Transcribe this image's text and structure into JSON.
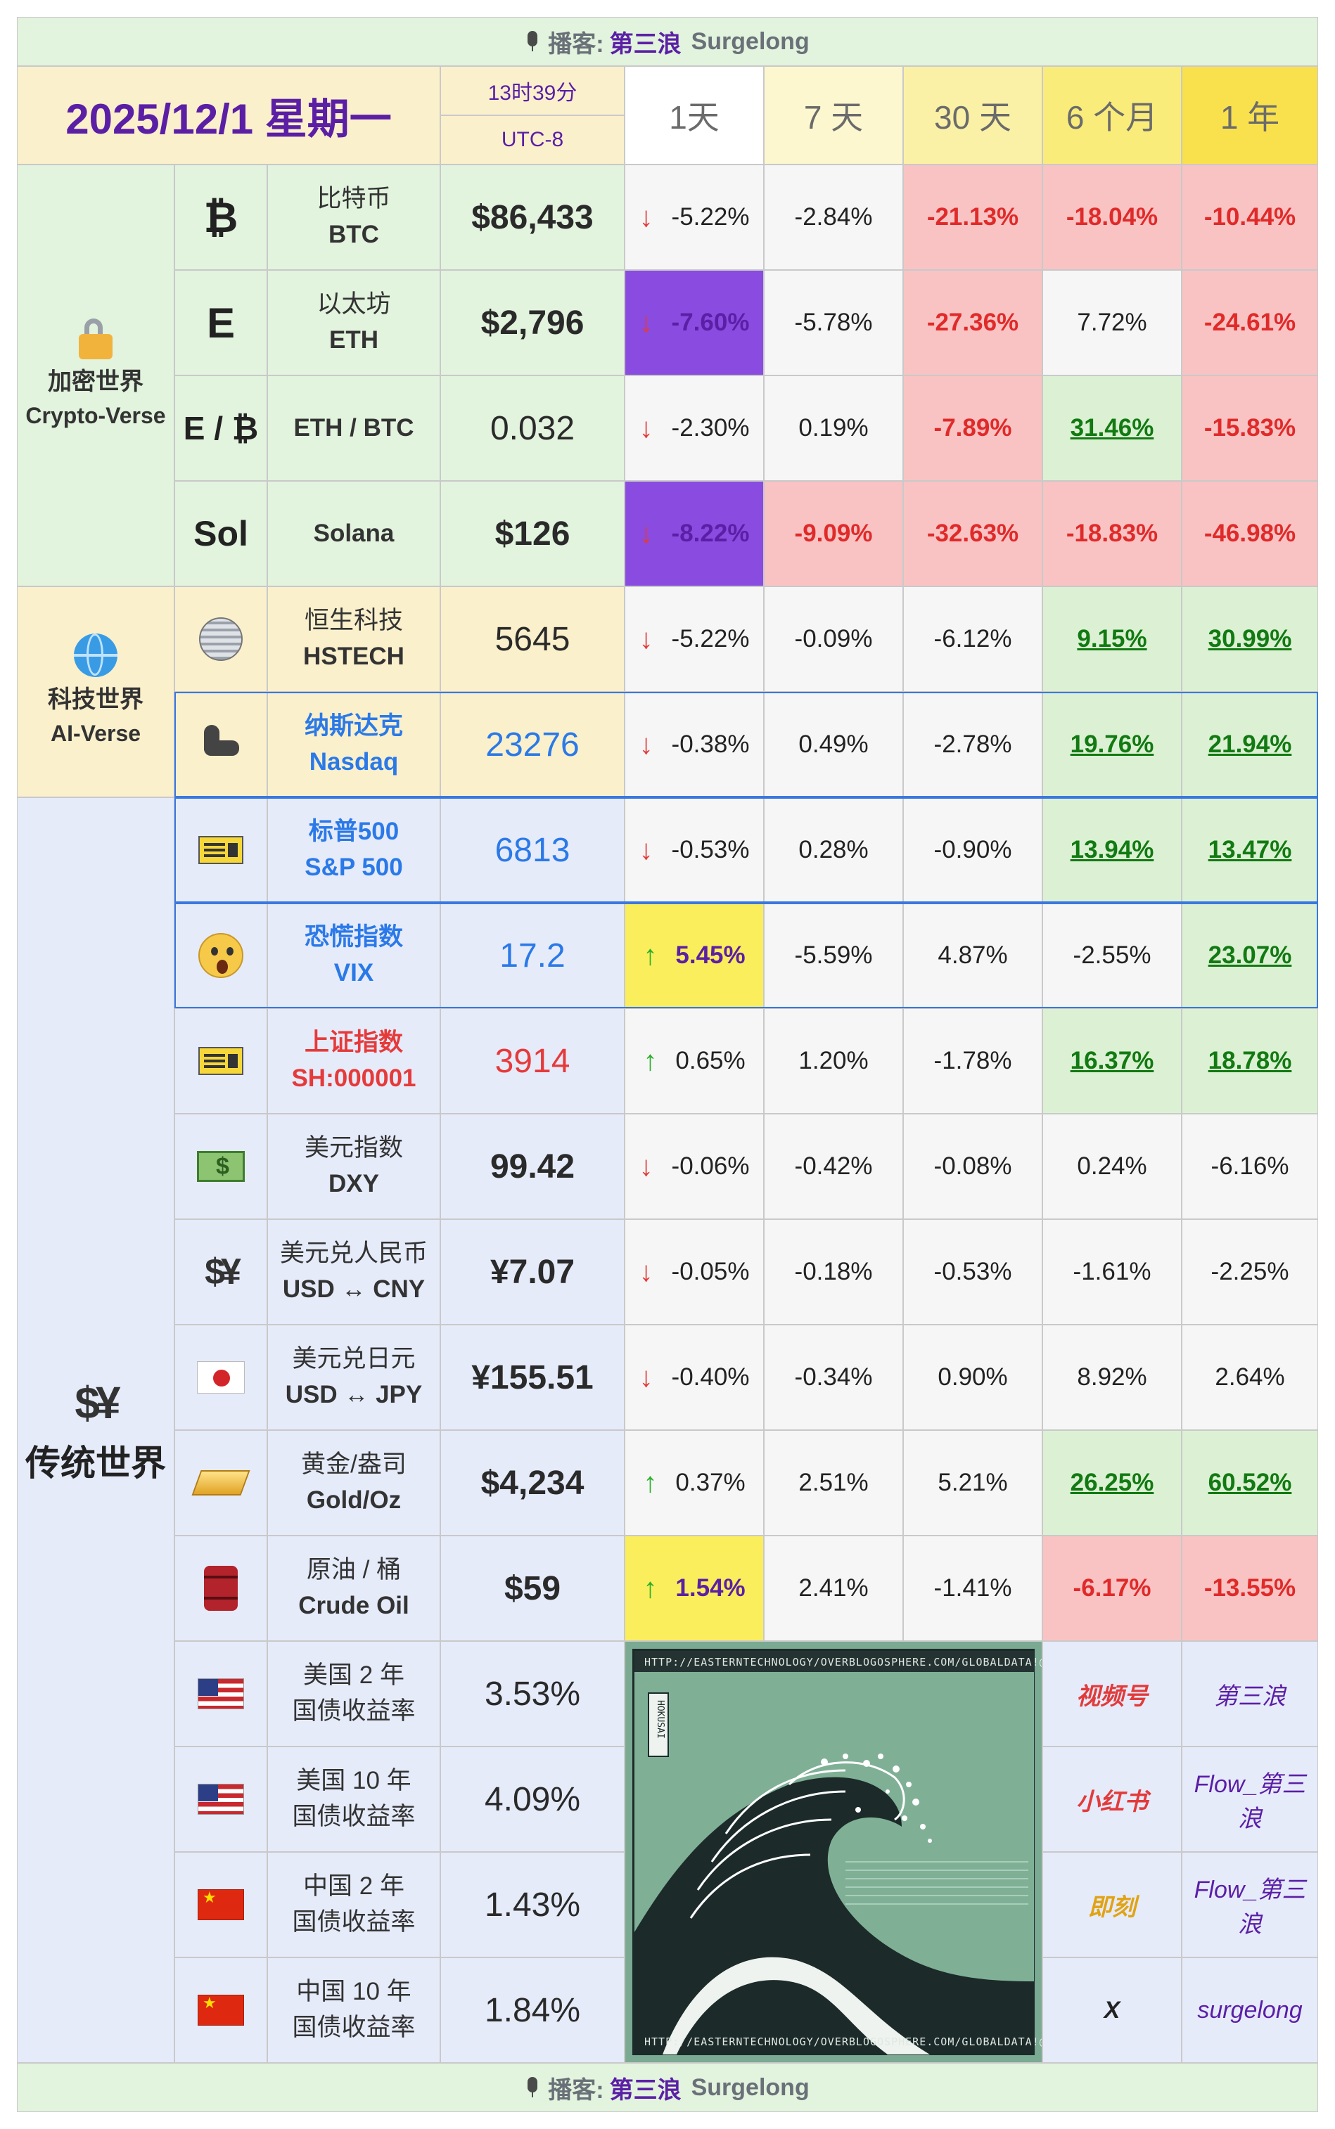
{
  "banner": {
    "podcast_label": "播客:",
    "name": "第三浪",
    "brand": "Surgelong"
  },
  "header": {
    "date": "2025/12/1 星期一",
    "time": "13时39分",
    "timezone": "UTC-8",
    "periods": [
      "1天",
      "7 天",
      "30 天",
      "6 个月",
      "1 年"
    ]
  },
  "sections": {
    "crypto": {
      "line1": "加密世界",
      "line2": "Crypto-Verse"
    },
    "tech": {
      "line1": "科技世界",
      "line2": "AI-Verse"
    },
    "traditional": {
      "line1": "传统世界"
    }
  },
  "rows": [
    {
      "icon": "₿",
      "name": "比特币",
      "code": "BTC",
      "price": "$86,433",
      "d1": "-5.22%",
      "d7": "-2.84%",
      "d30": "-21.13%",
      "m6": "-18.04%",
      "y1": "-10.44%"
    },
    {
      "icon": "E",
      "name": "以太坊",
      "code": "ETH",
      "price": "$2,796",
      "d1": "-7.60%",
      "d7": "-5.78%",
      "d30": "-27.36%",
      "m6": "7.72%",
      "y1": "-24.61%"
    },
    {
      "icon": "E / ₿",
      "name": "ETH / BTC",
      "code": "",
      "price": "0.032",
      "d1": "-2.30%",
      "d7": "0.19%",
      "d30": "-7.89%",
      "m6": "31.46%",
      "y1": "-15.83%"
    },
    {
      "icon": "Sol",
      "name": "Solana",
      "code": "",
      "price": "$126",
      "d1": "-8.22%",
      "d7": "-9.09%",
      "d30": "-32.63%",
      "m6": "-18.83%",
      "y1": "-46.98%"
    },
    {
      "icon": "disco-ball",
      "name": "恒生科技",
      "code": "HSTECH",
      "price": "5645",
      "d1": "-5.22%",
      "d7": "-0.09%",
      "d30": "-6.12%",
      "m6": "9.15%",
      "y1": "30.99%"
    },
    {
      "icon": "flexed-arm",
      "name": "纳斯达克",
      "code": "Nasdaq",
      "price": "23276",
      "d1": "-0.38%",
      "d7": "0.49%",
      "d30": "-2.78%",
      "m6": "19.76%",
      "y1": "21.94%"
    },
    {
      "icon": "ticket",
      "name": "标普500",
      "code": "S&P 500",
      "price": "6813",
      "d1": "-0.53%",
      "d7": "0.28%",
      "d30": "-0.90%",
      "m6": "13.94%",
      "y1": "13.47%"
    },
    {
      "icon": "scream-face",
      "name": "恐慌指数",
      "code": "VIX",
      "price": "17.2",
      "d1": "5.45%",
      "d7": "-5.59%",
      "d30": "4.87%",
      "m6": "-2.55%",
      "y1": "23.07%"
    },
    {
      "icon": "ticket",
      "name": "上证指数",
      "code": "SH:000001",
      "price": "3914",
      "d1": "0.65%",
      "d7": "1.20%",
      "d30": "-1.78%",
      "m6": "16.37%",
      "y1": "18.78%"
    },
    {
      "icon": "banknote",
      "name": "美元指数",
      "code": "DXY",
      "price": "99.42",
      "d1": "-0.06%",
      "d7": "-0.42%",
      "d30": "-0.08%",
      "m6": "0.24%",
      "y1": "-6.16%"
    },
    {
      "icon": "currency-exchange",
      "name": "美元兑人民币",
      "code": "USD ↔ CNY",
      "price": "¥7.07",
      "d1": "-0.05%",
      "d7": "-0.18%",
      "d30": "-0.53%",
      "m6": "-1.61%",
      "y1": "-2.25%"
    },
    {
      "icon": "japan-flag",
      "name": "美元兑日元",
      "code": "USD ↔ JPY",
      "price": "¥155.51",
      "d1": "-0.40%",
      "d7": "-0.34%",
      "d30": "0.90%",
      "m6": "8.92%",
      "y1": "2.64%"
    },
    {
      "icon": "gold-bar",
      "name": "黄金/盎司",
      "code": "Gold/Oz",
      "price": "$4,234",
      "d1": "0.37%",
      "d7": "2.51%",
      "d30": "5.21%",
      "m6": "26.25%",
      "y1": "60.52%"
    },
    {
      "icon": "oil-barrel",
      "name": "原油 / 桶",
      "code": "Crude Oil",
      "price": "$59",
      "d1": "1.54%",
      "d7": "2.41%",
      "d30": "-1.41%",
      "m6": "-6.17%",
      "y1": "-13.55%"
    },
    {
      "icon": "us-flag",
      "name": "美国 2 年",
      "code": "国债收益率",
      "price": "3.53%"
    },
    {
      "icon": "us-flag",
      "name": "美国 10 年",
      "code": "国债收益率",
      "price": "4.09%"
    },
    {
      "icon": "china-flag",
      "name": "中国 2 年",
      "code": "国债收益率",
      "price": "1.43%"
    },
    {
      "icon": "china-flag",
      "name": "中国 10 年",
      "code": "国债收益率",
      "price": "1.84%"
    }
  ],
  "artwork": {
    "url_text": "HTTP://EASTERNTECHNOLOGY/OVERBLOGOSPHERE.COM/GLOBALDATA!@#",
    "signature": "HOKUSAI",
    "colors": {
      "sea": "#7fb096",
      "wave": "#1c2a2a",
      "foam": "#ffffff"
    }
  },
  "socials": [
    {
      "platform": "视频号",
      "handle": "第三浪",
      "color": "#e23b3b"
    },
    {
      "platform": "小红书",
      "handle": "Flow_第三浪",
      "color": "#e23b3b"
    },
    {
      "platform": "即刻",
      "handle": "Flow_第三浪",
      "color": "#e0a314"
    },
    {
      "platform": "X",
      "handle": "surgelong",
      "color": "#222222"
    }
  ],
  "colors": {
    "crypto_bg": "#e2f3de",
    "tech_bg": "#faf0cc",
    "trad_bg": "#e6ebfa",
    "neg_bg": "#f9c3c3",
    "pos_bg": "#dcf1d4",
    "purple_hi": "#8a4be0",
    "yellow_hi": "#fbee5c",
    "accent_purple": "#5b1fa6"
  }
}
